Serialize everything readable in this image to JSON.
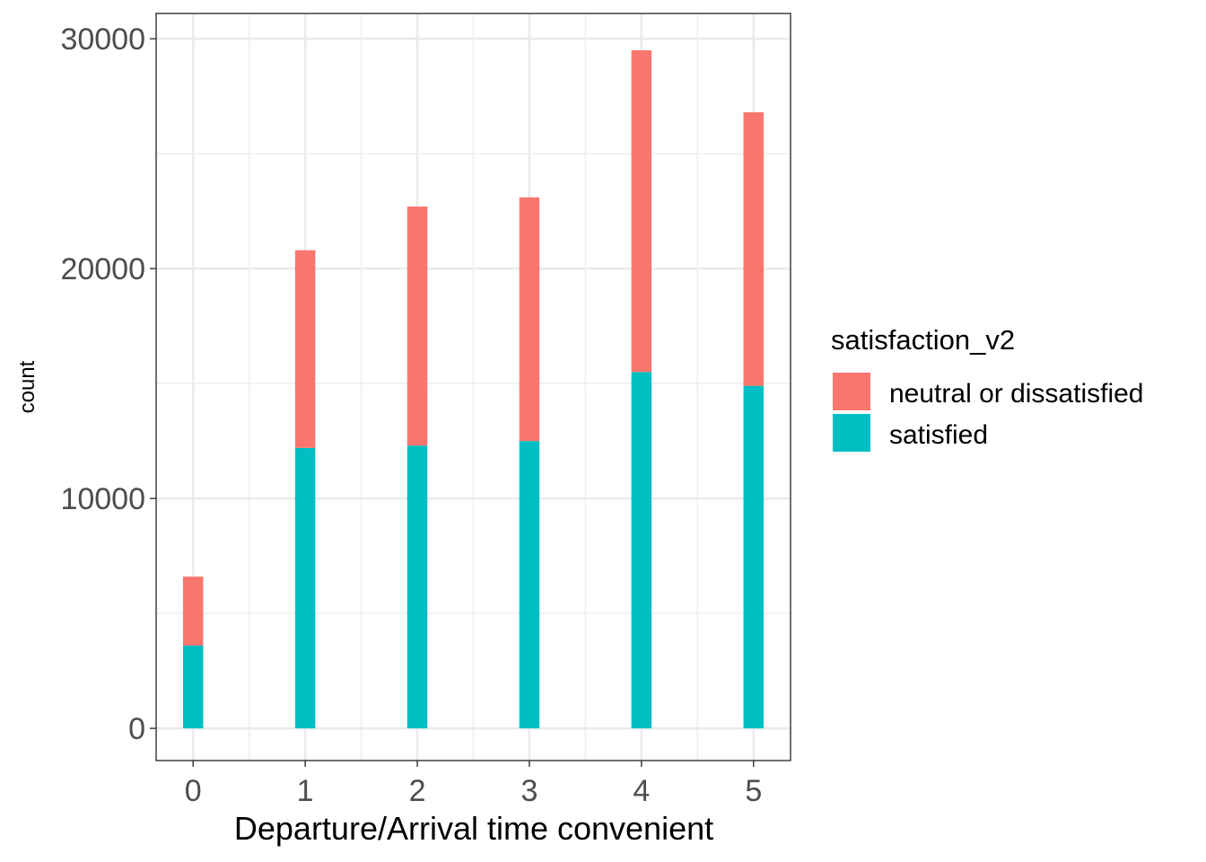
{
  "chart_data": {
    "type": "bar",
    "stacked": true,
    "xlabel": "Departure/Arrival time convenient",
    "ylabel": "count",
    "categories": [
      "0",
      "1",
      "2",
      "3",
      "4",
      "5"
    ],
    "x": [
      0,
      1,
      2,
      3,
      4,
      5
    ],
    "series": [
      {
        "name": "satisfied",
        "color": "#00BFC4",
        "values": [
          3600,
          12200,
          12300,
          12500,
          15500,
          14900
        ]
      },
      {
        "name": "neutral or dissatisfied",
        "color": "#F8766D",
        "values": [
          3000,
          8600,
          10400,
          10600,
          14000,
          11900
        ]
      }
    ],
    "xlim": [
      -0.33,
      5.33
    ],
    "ylim": [
      -1400,
      31100
    ],
    "yticks": [
      0,
      10000,
      20000,
      30000
    ],
    "ytick_labels": [
      "0",
      "10000",
      "20000",
      "30000"
    ],
    "grid": true,
    "legend": {
      "title": "satisfaction_v2",
      "position": "right",
      "entries": [
        "neutral or dissatisfied",
        "satisfied"
      ]
    }
  }
}
